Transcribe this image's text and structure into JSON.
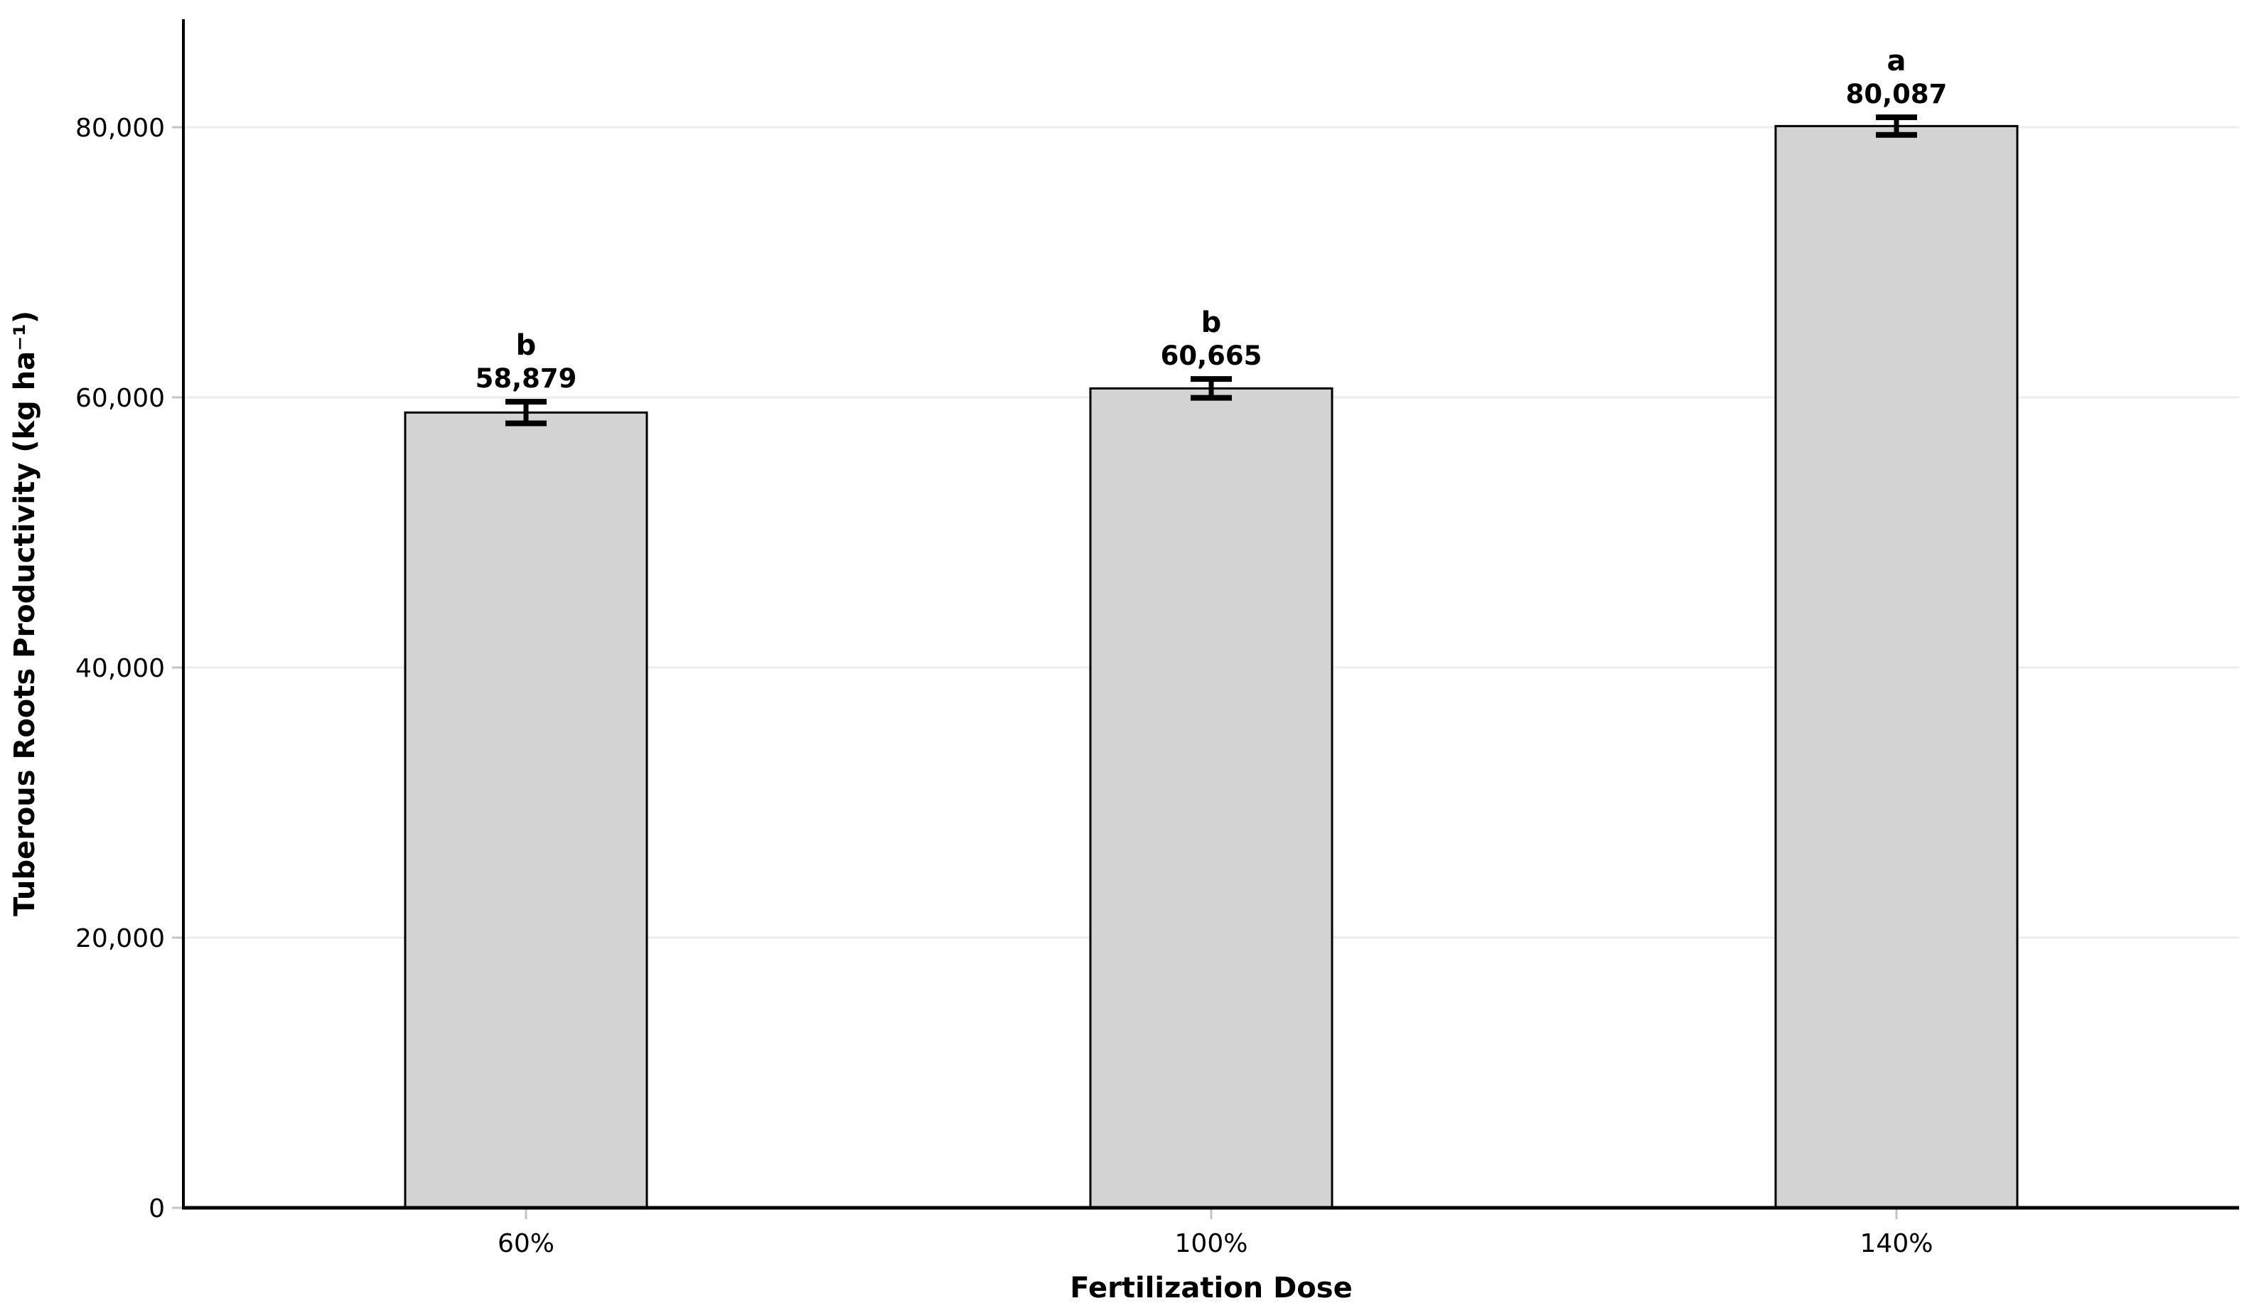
{
  "figure": {
    "background_color": "#ffffff"
  },
  "chart_data": {
    "type": "bar",
    "title": "",
    "xlabel": "Fertilization Dose",
    "ylabel": "Tuberous Roots Productivity (kg ha⁻¹)",
    "categories": [
      "60%",
      "100%",
      "140%"
    ],
    "values": [
      58879,
      60665,
      80087
    ],
    "value_labels": [
      "58,879",
      "60,665",
      "80,087"
    ],
    "significance_letters": [
      "b",
      "b",
      "a"
    ],
    "error_bars": [
      800,
      700,
      650
    ],
    "ylim": [
      0,
      88000
    ],
    "yticks": [
      0,
      20000,
      40000,
      60000,
      80000
    ],
    "ytick_labels": [
      "0",
      "20,000",
      "40,000",
      "60,000",
      "80,000"
    ],
    "grid": "horizontal-major-only",
    "legend": "none",
    "colors": {
      "bar_fill": "#d3d3d3",
      "bar_edge": "#000000",
      "error_bar": "#000000",
      "gridline": "#ededed",
      "tick_mark": "#c4c4c4",
      "axis_line": "#000000",
      "text": "#000000"
    }
  }
}
